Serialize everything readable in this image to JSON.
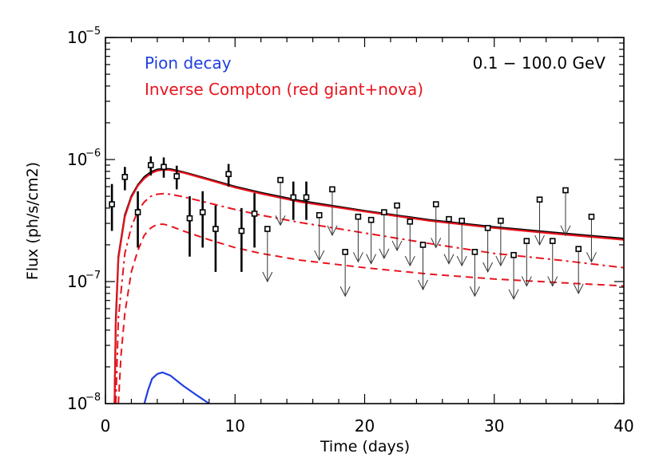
{
  "chart_data": {
    "type": "scatter",
    "xlabel": "Time (days)",
    "ylabel": "Flux (ph/s/cm2)",
    "xlim": [
      0,
      40
    ],
    "ylim": [
      1e-08,
      1e-05
    ],
    "yscale": "log",
    "x_ticks": [
      "0",
      "10",
      "20",
      "30",
      "40"
    ],
    "y_ticks": [
      {
        "base": "10",
        "exp": "−8"
      },
      {
        "base": "10",
        "exp": "−7"
      },
      {
        "base": "10",
        "exp": "−6"
      },
      {
        "base": "10",
        "exp": "−5"
      }
    ],
    "annotations": {
      "energy_range": "0.1 − 100.0 GeV",
      "legend_pion": "Pion decay",
      "legend_ic": "Inverse Compton (red giant+nova)"
    },
    "colors": {
      "pion": "#1f3fe0",
      "ic": "#e8141e",
      "total": "#000000",
      "data": "#000000"
    },
    "detections": [
      {
        "x": 0.5,
        "y": 4.3e-07,
        "ylo": 2.6e-07,
        "yhi": 6.3e-07
      },
      {
        "x": 1.5,
        "y": 7.2e-07,
        "ylo": 5.6e-07,
        "yhi": 8.7e-07
      },
      {
        "x": 2.5,
        "y": 3.7e-07,
        "ylo": 1.9e-07,
        "yhi": 5.5e-07
      },
      {
        "x": 3.5,
        "y": 9e-07,
        "ylo": 7.4e-07,
        "yhi": 1.06e-06
      },
      {
        "x": 4.5,
        "y": 8.7e-07,
        "ylo": 7.1e-07,
        "yhi": 1.04e-06
      },
      {
        "x": 5.5,
        "y": 7.3e-07,
        "ylo": 5.7e-07,
        "yhi": 8.9e-07
      },
      {
        "x": 6.5,
        "y": 3.3e-07,
        "ylo": 1.6e-07,
        "yhi": 5e-07
      },
      {
        "x": 7.5,
        "y": 3.7e-07,
        "ylo": 1.9e-07,
        "yhi": 5.5e-07
      },
      {
        "x": 8.5,
        "y": 2.7e-07,
        "ylo": 1.2e-07,
        "yhi": 4.2e-07
      },
      {
        "x": 9.5,
        "y": 7.6e-07,
        "ylo": 6e-07,
        "yhi": 9.2e-07
      },
      {
        "x": 10.5,
        "y": 2.6e-07,
        "ylo": 1.2e-07,
        "yhi": 4e-07
      },
      {
        "x": 11.5,
        "y": 3.6e-07,
        "ylo": 1.9e-07,
        "yhi": 5.3e-07
      },
      {
        "x": 14.5,
        "y": 4.9e-07,
        "ylo": 3.2e-07,
        "yhi": 6.6e-07
      },
      {
        "x": 15.5,
        "y": 4.9e-07,
        "ylo": 3.2e-07,
        "yhi": 6.6e-07
      }
    ],
    "upper_limits": [
      {
        "x": 12.5,
        "y": 2.7e-07,
        "tip": 1e-07
      },
      {
        "x": 13.5,
        "y": 6.8e-07,
        "tip": 2.9e-07
      },
      {
        "x": 16.5,
        "y": 3.5e-07,
        "tip": 1.5e-07
      },
      {
        "x": 17.5,
        "y": 5.7e-07,
        "tip": 2.4e-07
      },
      {
        "x": 18.5,
        "y": 1.75e-07,
        "tip": 7.6e-08
      },
      {
        "x": 19.5,
        "y": 3.4e-07,
        "tip": 1.45e-07
      },
      {
        "x": 20.5,
        "y": 3.2e-07,
        "tip": 1.4e-07
      },
      {
        "x": 21.5,
        "y": 3.7e-07,
        "tip": 1.55e-07
      },
      {
        "x": 22.5,
        "y": 4.2e-07,
        "tip": 1.8e-07
      },
      {
        "x": 23.5,
        "y": 3.1e-07,
        "tip": 1.35e-07
      },
      {
        "x": 24.5,
        "y": 2e-07,
        "tip": 8.6e-08
      },
      {
        "x": 25.5,
        "y": 4.3e-07,
        "tip": 1.9e-07
      },
      {
        "x": 26.5,
        "y": 3.25e-07,
        "tip": 1.4e-07
      },
      {
        "x": 27.5,
        "y": 3.15e-07,
        "tip": 1.35e-07
      },
      {
        "x": 28.5,
        "y": 1.75e-07,
        "tip": 7.6e-08
      },
      {
        "x": 29.5,
        "y": 2.75e-07,
        "tip": 1.2e-07
      },
      {
        "x": 30.5,
        "y": 3.15e-07,
        "tip": 1.35e-07
      },
      {
        "x": 31.5,
        "y": 1.65e-07,
        "tip": 7.2e-08
      },
      {
        "x": 32.5,
        "y": 2.15e-07,
        "tip": 9.2e-08
      },
      {
        "x": 33.5,
        "y": 4.7e-07,
        "tip": 2e-07
      },
      {
        "x": 34.5,
        "y": 2.15e-07,
        "tip": 9.2e-08
      },
      {
        "x": 35.5,
        "y": 5.6e-07,
        "tip": 2.4e-07
      },
      {
        "x": 36.5,
        "y": 1.85e-07,
        "tip": 8e-08
      },
      {
        "x": 37.5,
        "y": 3.4e-07,
        "tip": 1.45e-07
      }
    ],
    "model_curves": {
      "total": [
        [
          0.7,
          1e-08
        ],
        [
          0.8,
          5e-08
        ],
        [
          1.0,
          1.6e-07
        ],
        [
          1.5,
          3.5e-07
        ],
        [
          2.0,
          5e-07
        ],
        [
          2.5,
          6.2e-07
        ],
        [
          3.0,
          7.2e-07
        ],
        [
          3.5,
          7.9e-07
        ],
        [
          4.0,
          8.3e-07
        ],
        [
          4.5,
          8.4e-07
        ],
        [
          5.0,
          8.35e-07
        ],
        [
          6.0,
          7.9e-07
        ],
        [
          8.0,
          6.9e-07
        ],
        [
          10.0,
          6e-07
        ],
        [
          12.0,
          5.35e-07
        ],
        [
          15.0,
          4.6e-07
        ],
        [
          20.0,
          3.8e-07
        ],
        [
          25.0,
          3.2e-07
        ],
        [
          30.0,
          2.8e-07
        ],
        [
          35.0,
          2.5e-07
        ],
        [
          40.0,
          2.25e-07
        ]
      ],
      "ic_total": [
        [
          0.7,
          1e-08
        ],
        [
          0.8,
          4.5e-08
        ],
        [
          1.0,
          1.55e-07
        ],
        [
          1.5,
          3.4e-07
        ],
        [
          2.0,
          4.9e-07
        ],
        [
          2.5,
          6.1e-07
        ],
        [
          3.0,
          7e-07
        ],
        [
          3.5,
          7.7e-07
        ],
        [
          4.0,
          8.1e-07
        ],
        [
          4.5,
          8.25e-07
        ],
        [
          5.0,
          8.2e-07
        ],
        [
          6.0,
          7.8e-07
        ],
        [
          8.0,
          6.8e-07
        ],
        [
          10.0,
          5.9e-07
        ],
        [
          12.0,
          5.25e-07
        ],
        [
          15.0,
          4.5e-07
        ],
        [
          20.0,
          3.75e-07
        ],
        [
          25.0,
          3.15e-07
        ],
        [
          30.0,
          2.75e-07
        ],
        [
          35.0,
          2.45e-07
        ],
        [
          40.0,
          2.2e-07
        ]
      ],
      "ic_red_giant": [
        [
          0.8,
          1e-08
        ],
        [
          1.0,
          5e-08
        ],
        [
          1.5,
          1.7e-07
        ],
        [
          2.0,
          2.8e-07
        ],
        [
          2.5,
          3.8e-07
        ],
        [
          3.0,
          4.5e-07
        ],
        [
          3.5,
          5e-07
        ],
        [
          4.0,
          5.2e-07
        ],
        [
          4.5,
          5.25e-07
        ],
        [
          5.0,
          5.2e-07
        ],
        [
          6.0,
          4.95e-07
        ],
        [
          8.0,
          4.4e-07
        ],
        [
          10.0,
          3.9e-07
        ],
        [
          12.0,
          3.5e-07
        ],
        [
          15.0,
          3.05e-07
        ],
        [
          20.0,
          2.5e-07
        ],
        [
          25.0,
          2.05e-07
        ],
        [
          30.0,
          1.7e-07
        ],
        [
          35.0,
          1.5e-07
        ],
        [
          40.0,
          1.3e-07
        ]
      ],
      "ic_nova": [
        [
          1.0,
          1e-08
        ],
        [
          1.2,
          2.5e-08
        ],
        [
          1.5,
          5.5e-08
        ],
        [
          2.0,
          1.2e-07
        ],
        [
          2.5,
          1.8e-07
        ],
        [
          3.0,
          2.4e-07
        ],
        [
          3.5,
          2.75e-07
        ],
        [
          4.0,
          2.95e-07
        ],
        [
          4.5,
          2.95e-07
        ],
        [
          5.0,
          2.85e-07
        ],
        [
          6.0,
          2.6e-07
        ],
        [
          8.0,
          2.2e-07
        ],
        [
          10.0,
          1.9e-07
        ],
        [
          12.0,
          1.7e-07
        ],
        [
          15.0,
          1.5e-07
        ],
        [
          20.0,
          1.3e-07
        ],
        [
          25.0,
          1.15e-07
        ],
        [
          30.0,
          1.05e-07
        ],
        [
          35.0,
          9.8e-08
        ],
        [
          40.0,
          9.2e-08
        ]
      ],
      "pion": [
        [
          3.0,
          1e-08
        ],
        [
          3.3,
          1.3e-08
        ],
        [
          3.6,
          1.6e-08
        ],
        [
          4.0,
          1.75e-08
        ],
        [
          4.4,
          1.8e-08
        ],
        [
          5.0,
          1.7e-08
        ],
        [
          6.0,
          1.4e-08
        ],
        [
          7.0,
          1.18e-08
        ],
        [
          8.0,
          1e-08
        ]
      ]
    }
  }
}
